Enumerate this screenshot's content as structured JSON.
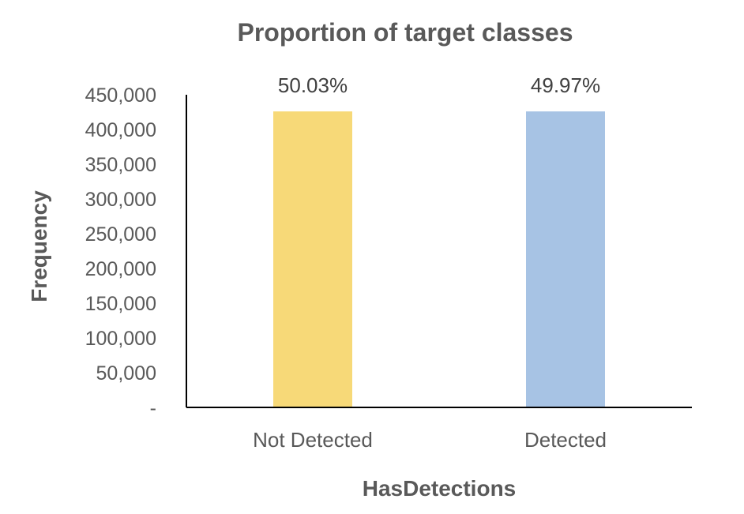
{
  "chart_data": {
    "type": "bar",
    "title": "Proportion of target classes",
    "xlabel": "HasDetections",
    "ylabel": "Frequency",
    "categories": [
      "Not Detected",
      "Detected"
    ],
    "values": [
      426000,
      426000
    ],
    "data_labels": [
      "50.03%",
      "49.97%"
    ],
    "colors": [
      "#F7D978",
      "#A7C3E4"
    ],
    "ylim": [
      0,
      450000
    ],
    "yticks": [
      0,
      50000,
      100000,
      150000,
      200000,
      250000,
      300000,
      350000,
      400000,
      450000
    ],
    "ytick_labels": [
      "-",
      "50,000",
      "100,000",
      "150,000",
      "200,000",
      "250,000",
      "300,000",
      "350,000",
      "400,000",
      "450,000"
    ],
    "grid": false,
    "legend": "none"
  }
}
